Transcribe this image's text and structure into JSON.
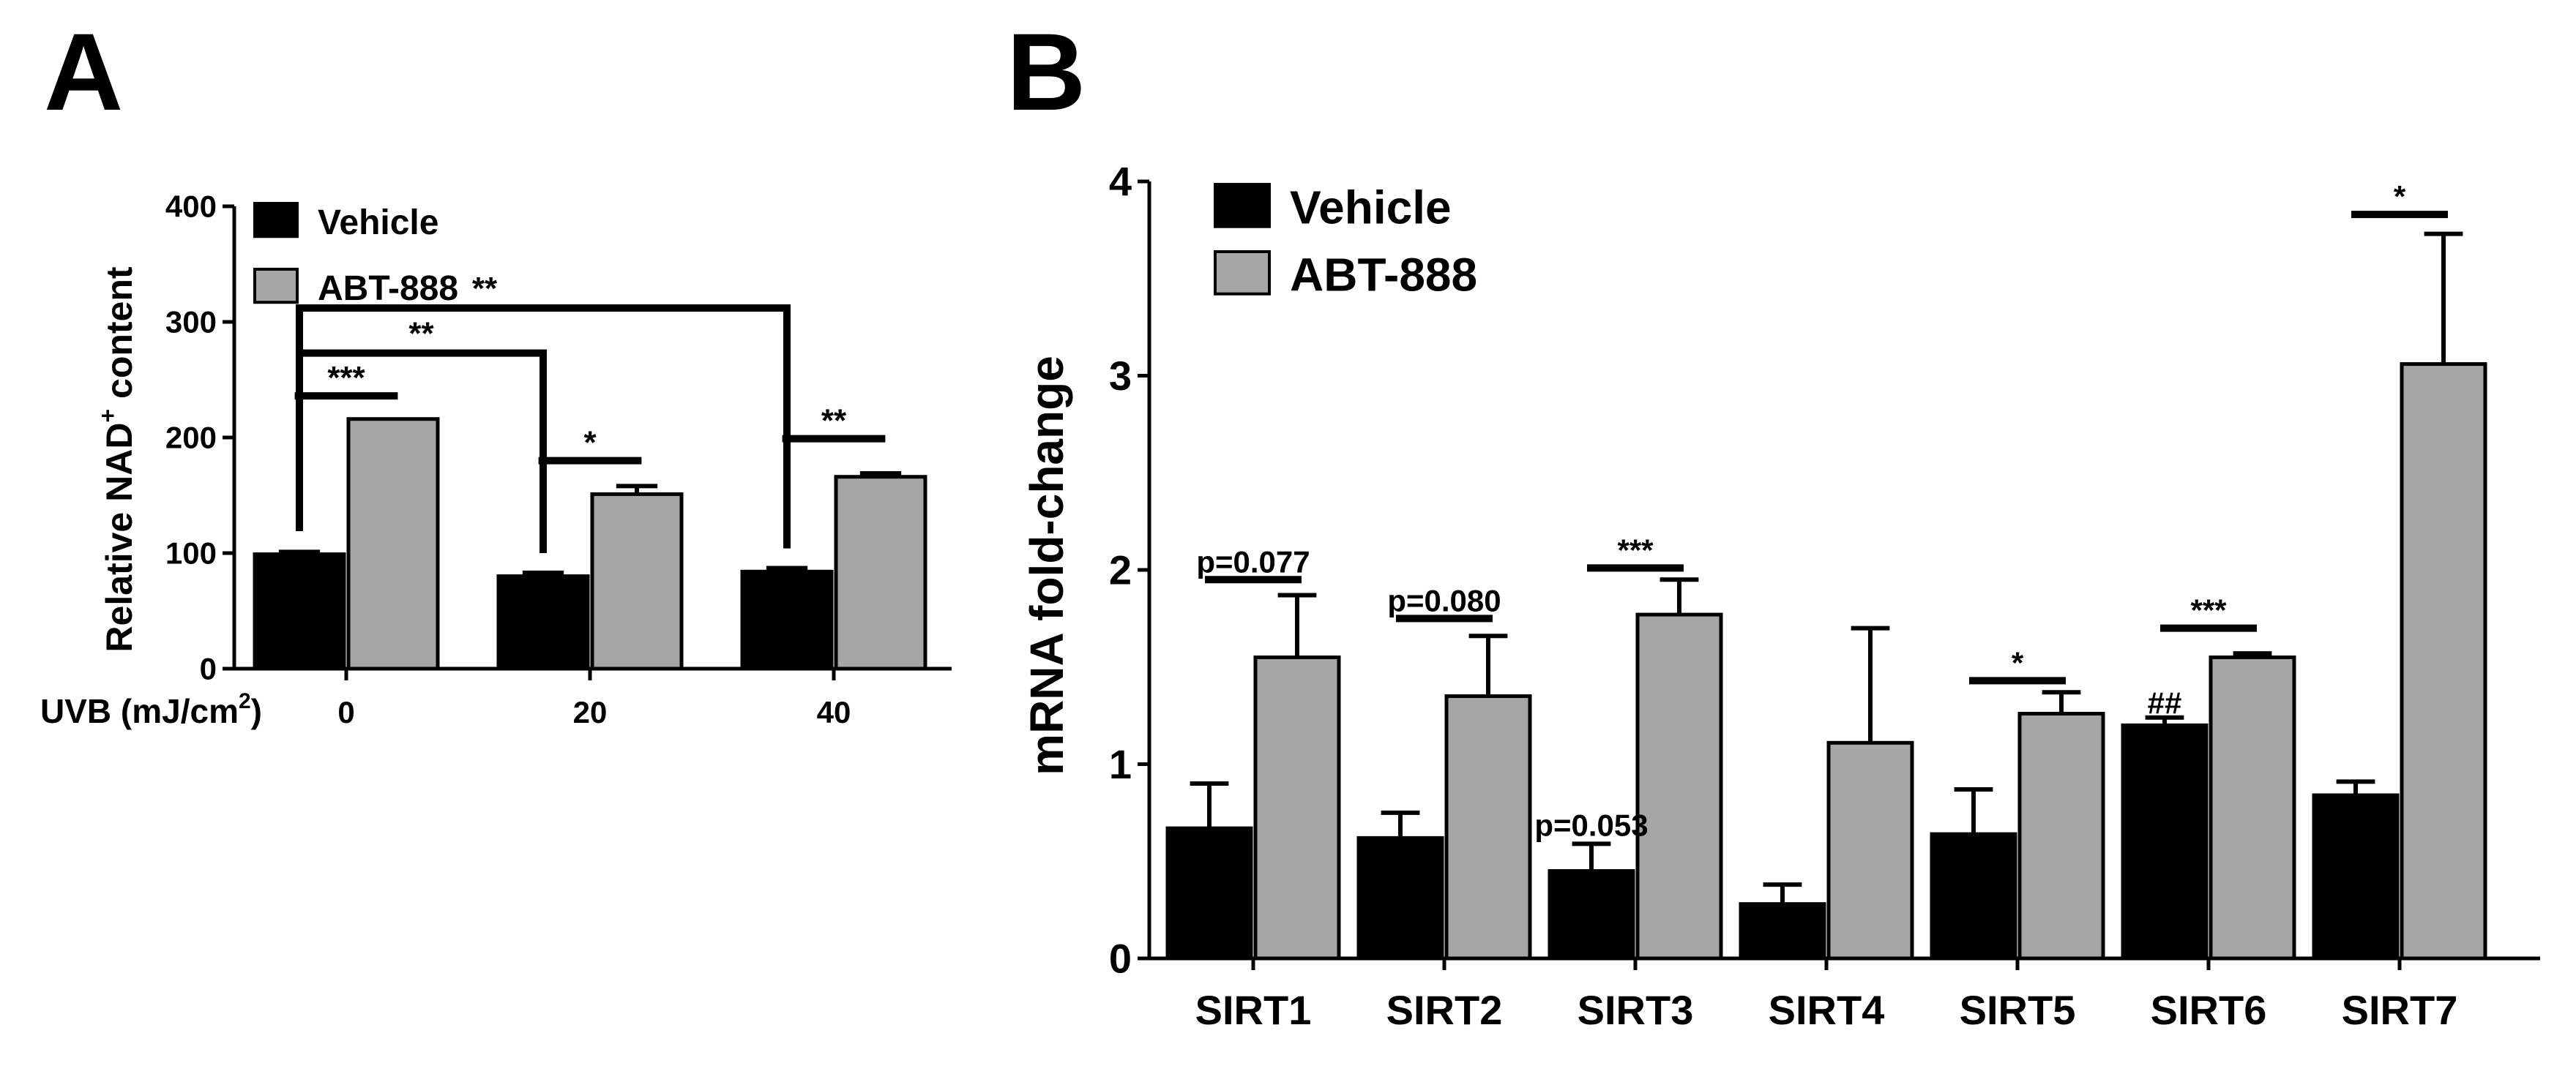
{
  "panels": {
    "a": "A",
    "b": "B"
  },
  "colors": {
    "vehicle": "#000000",
    "abt": "#a6a6a6",
    "edge": "#000000"
  },
  "chart_data": [
    {
      "panel": "A",
      "type": "bar",
      "title": "",
      "ylabel_pre": "Relative NAD",
      "ylabel_sup": "+",
      "ylabel_post": " content",
      "xlabel_pre": "UVB (mJ/cm",
      "xlabel_sup": "2",
      "xlabel_post": ")",
      "categories": [
        "0",
        "20",
        "40"
      ],
      "ylim": [
        0,
        400
      ],
      "yticks": [
        0,
        100,
        200,
        300,
        400
      ],
      "legend_position": "top-left",
      "series": [
        {
          "name": "Vehicle",
          "color": "#000000",
          "values": [
            99,
            80,
            84
          ],
          "errors": [
            2,
            3,
            3
          ]
        },
        {
          "name": "ABT-888",
          "color": "#a6a6a6",
          "values": [
            216,
            151,
            166
          ],
          "errors": [
            0,
            7,
            3
          ]
        }
      ],
      "annotations": [
        {
          "text": "***",
          "kind": "pair",
          "category": 0,
          "y": 236
        },
        {
          "text": "*",
          "kind": "pair",
          "category": 1,
          "y": 180
        },
        {
          "text": "**",
          "kind": "pair",
          "category": 2,
          "y": 199
        },
        {
          "text": "**",
          "kind": "bracket",
          "from": 0,
          "to": 1,
          "y": 273
        },
        {
          "text": "**",
          "kind": "bracket",
          "from": 0,
          "to": 2,
          "y": 312
        }
      ]
    },
    {
      "panel": "B",
      "type": "bar",
      "title": "",
      "ylabel": "mRNA fold-change",
      "xlabel": "",
      "categories": [
        "SIRT1",
        "SIRT2",
        "SIRT3",
        "SIRT4",
        "SIRT5",
        "SIRT6",
        "SIRT7"
      ],
      "ylim": [
        0,
        4
      ],
      "yticks": [
        0,
        1,
        2,
        3,
        4
      ],
      "legend_position": "top-left",
      "series": [
        {
          "name": "Vehicle",
          "color": "#000000",
          "values": [
            0.67,
            0.62,
            0.45,
            0.28,
            0.64,
            1.2,
            0.84
          ],
          "errors": [
            0.23,
            0.13,
            0.14,
            0.1,
            0.23,
            0.04,
            0.07
          ]
        },
        {
          "name": "ABT-888",
          "color": "#a6a6a6",
          "values": [
            1.55,
            1.35,
            1.77,
            1.11,
            1.26,
            1.55,
            3.06
          ],
          "errors": [
            0.32,
            0.31,
            0.18,
            0.59,
            0.11,
            0.02,
            0.67
          ]
        }
      ],
      "annotations": [
        {
          "text": "p=0.077",
          "kind": "pair",
          "category": 0,
          "y": 1.95
        },
        {
          "text": "p=0.080",
          "kind": "pair",
          "category": 1,
          "y": 1.75
        },
        {
          "text": "***",
          "kind": "pair",
          "category": 2,
          "y": 2.01
        },
        {
          "text": "*",
          "kind": "pair",
          "category": 4,
          "y": 1.43
        },
        {
          "text": "***",
          "kind": "pair",
          "category": 5,
          "y": 1.7
        },
        {
          "text": "*",
          "kind": "pair",
          "category": 6,
          "y": 3.83
        },
        {
          "text": "p=0.053",
          "kind": "label",
          "category": 2,
          "y": 0.63
        },
        {
          "text": "##",
          "kind": "label",
          "category": 5,
          "y": 1.26
        }
      ]
    }
  ]
}
